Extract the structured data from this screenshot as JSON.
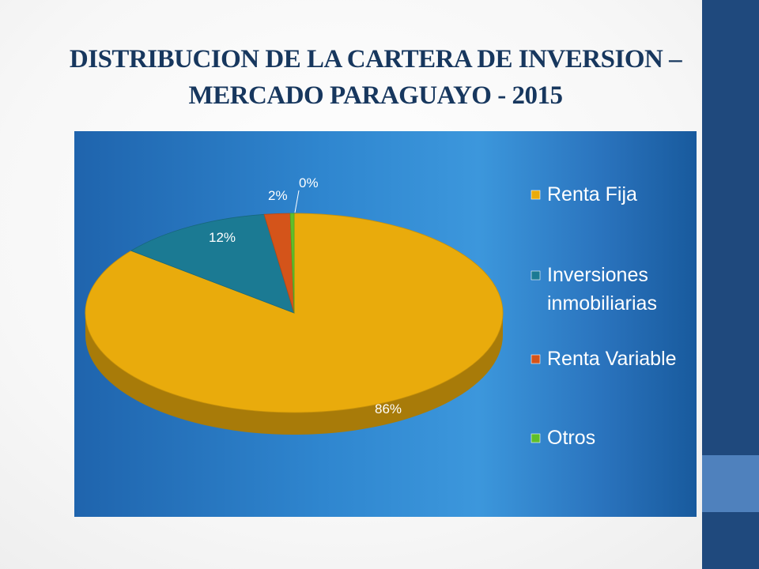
{
  "slide": {
    "title_line1": "DISTRIBUCION DE LA CARTERA DE INVERSION –",
    "title_line2": "MERCADO PARAGUAYO - 2015"
  },
  "colors": {
    "accent_dark": "#1f497d",
    "accent_light": "#4f81bd",
    "renta_fija": "#e9ab0c",
    "inversiones": "#1b7a93",
    "renta_variable": "#d4541a",
    "otros": "#5fbf2a"
  },
  "chart_data": {
    "type": "pie",
    "title": "",
    "legend_position": "right",
    "slices": [
      {
        "label": "Renta Fija",
        "value": 86,
        "data_label": "86%",
        "color": "#e9ab0c"
      },
      {
        "label": "Inversiones inmobiliarias",
        "legend_lines": [
          "Inversiones",
          "inmobiliarias"
        ],
        "value": 12,
        "data_label": "12%",
        "color": "#1b7a93"
      },
      {
        "label": "Renta Variable",
        "value": 2,
        "data_label": "2%",
        "color": "#d4541a"
      },
      {
        "label": "Otros",
        "value": 0.3,
        "data_label": "0%",
        "color": "#5fbf2a"
      }
    ]
  }
}
